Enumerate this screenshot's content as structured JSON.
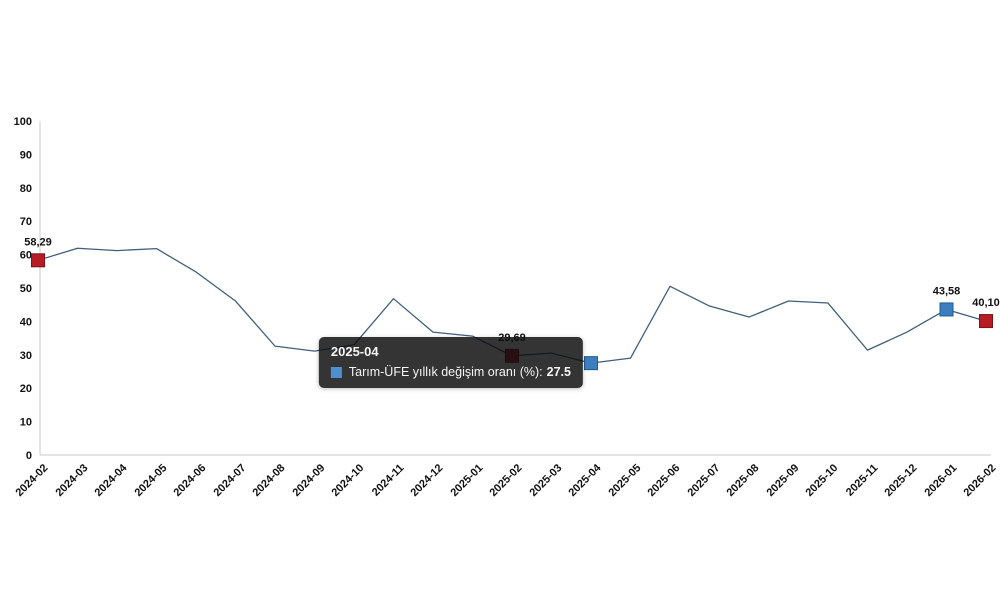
{
  "chart_data": {
    "type": "line",
    "title": "",
    "series_name": "Tarım-ÜFE yıllık değişim oranı (%)",
    "categories": [
      "2024-02",
      "2024-03",
      "2024-04",
      "2024-05",
      "2024-06",
      "2024-07",
      "2024-08",
      "2024-09",
      "2024-10",
      "2024-11",
      "2024-12",
      "2025-01",
      "2025-02",
      "2025-03",
      "2025-04",
      "2025-05",
      "2025-06",
      "2025-07",
      "2025-08",
      "2025-09",
      "2025-10",
      "2025-11",
      "2025-12",
      "2026-01",
      "2026-02"
    ],
    "values": [
      58.29,
      61.9,
      61.2,
      61.8,
      54.8,
      46.1,
      32.6,
      31.1,
      33.0,
      46.8,
      36.8,
      35.6,
      29.69,
      30.5,
      27.5,
      29.0,
      50.5,
      44.6,
      41.3,
      46.1,
      45.5,
      31.4,
      36.8,
      43.58,
      40.1
    ],
    "ylim": [
      0,
      100
    ],
    "y_ticks": [
      0,
      10,
      20,
      30,
      40,
      50,
      60,
      70,
      80,
      90,
      100
    ],
    "grid": false,
    "legend": "none",
    "line_color": "#3f5f7d",
    "axis_color": "#c9c9c9",
    "label_color": "#111111",
    "marker_colors": {
      "red": {
        "fill": "#b71c25",
        "stroke": "#7f1116"
      },
      "blue": {
        "fill": "#3d7fbe",
        "stroke": "#1e5b91"
      }
    },
    "annotated_points": [
      {
        "index": 0,
        "label": "58,29",
        "color": "red"
      },
      {
        "index": 12,
        "label": "29,69",
        "color": "red"
      },
      {
        "index": 14,
        "label": "",
        "color": "blue"
      },
      {
        "index": 23,
        "label": "43,58",
        "color": "blue"
      },
      {
        "index": 24,
        "label": "40,10",
        "color": "red"
      }
    ]
  },
  "tooltip": {
    "title": "2025-04",
    "label": "Tarım-ÜFE yıllık değişim oranı (%):",
    "value": "27.5",
    "hover_index": 14,
    "swatch_color": "#4e90cf"
  }
}
